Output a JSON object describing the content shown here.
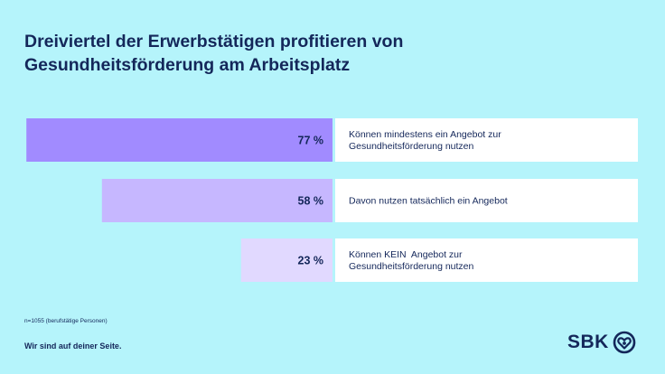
{
  "title": {
    "line1": "Dreiviertel der Erwerbstätigen profitieren von",
    "line2": "Gesundheitsförderung am Arbeitsplatz"
  },
  "chart_data": {
    "type": "bar",
    "orientation": "horizontal",
    "categories": [
      [
        "Können mindestens ein Angebot zur",
        "Gesundheitsförderung nutzen"
      ],
      [
        "Davon nutzen tatsächlich ein Angebot"
      ],
      [
        "Können KEIN  Angebot zur",
        "Gesundheitsförderung nutzen"
      ]
    ],
    "values": [
      77,
      58,
      23
    ],
    "value_labels": [
      "77 %",
      "58 %",
      "23 %"
    ],
    "unit": "%",
    "xlim": [
      0,
      100
    ],
    "bar_colors": [
      "#a18bff",
      "#c6b7ff",
      "#e1d9ff"
    ],
    "label_box_color": "#ffffff",
    "text_color": "#14275a"
  },
  "footer": {
    "note": "n=1055 (berufstätige Personen)",
    "slogan": "Wir sind auf deiner Seite."
  },
  "logo": {
    "text": "SBK",
    "icon": "heart-in-circle-icon"
  }
}
